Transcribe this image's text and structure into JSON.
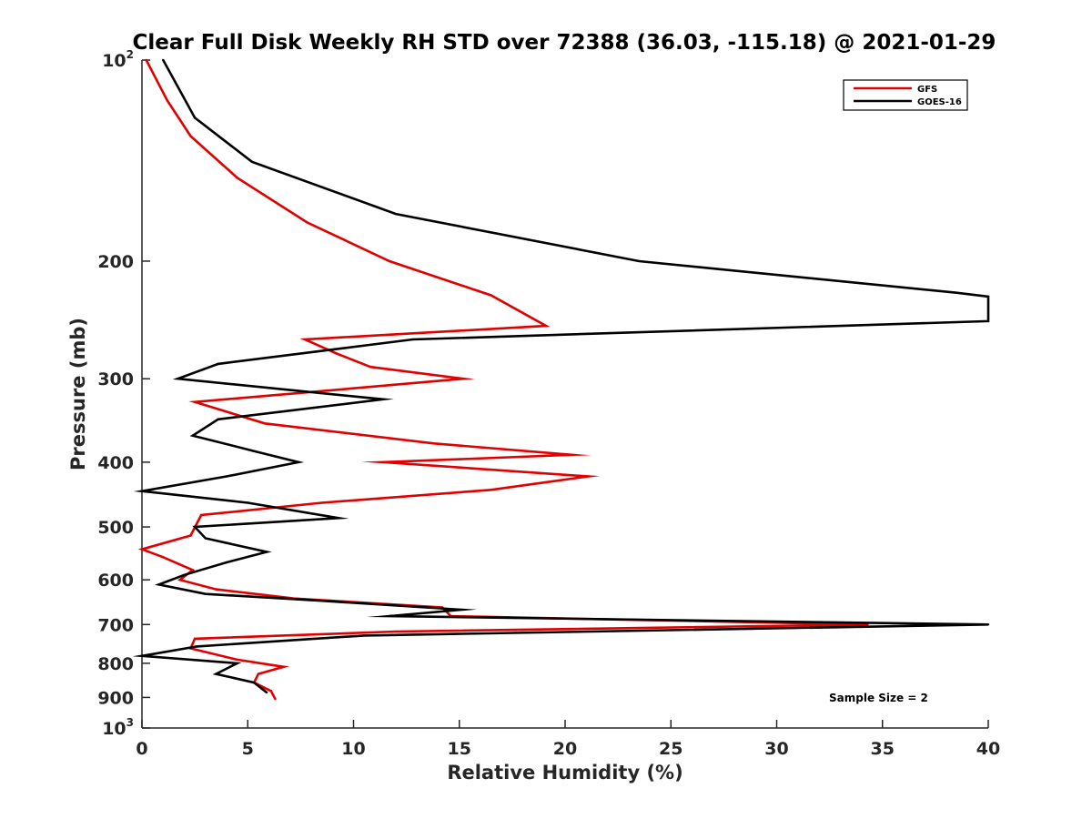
{
  "chart_data": {
    "type": "line",
    "title": "Clear Full Disk Weekly RH STD over 72388 (36.03, -115.18) @ 2021-01-29",
    "xlabel": "Relative Humidity (%)",
    "ylabel": "Pressure (mb)",
    "xlim": [
      0,
      40
    ],
    "ylim": [
      100,
      1000
    ],
    "y_scale": "log",
    "y_reversed": true,
    "grid": false,
    "legend_placement": "top-right",
    "x_ticks": [
      0,
      5,
      10,
      15,
      20,
      25,
      30,
      35,
      40
    ],
    "x_tick_labels": [
      "0",
      "5",
      "10",
      "15",
      "20",
      "25",
      "30",
      "35",
      "40"
    ],
    "y_ticks": [
      100,
      200,
      300,
      400,
      500,
      600,
      700,
      800,
      900,
      1000
    ],
    "y_tick_labels": [
      {
        "base": "10",
        "sup": "2"
      },
      {
        "base": "200",
        "sup": ""
      },
      {
        "base": "300",
        "sup": ""
      },
      {
        "base": "400",
        "sup": ""
      },
      {
        "base": "500",
        "sup": ""
      },
      {
        "base": "600",
        "sup": ""
      },
      {
        "base": "700",
        "sup": ""
      },
      {
        "base": "800",
        "sup": ""
      },
      {
        "base": "900",
        "sup": ""
      },
      {
        "base": "10",
        "sup": "3"
      }
    ],
    "annotation": "Sample Size = 2",
    "series": [
      {
        "name": "GFS",
        "color": "#e00000",
        "points": [
          [
            0.2,
            100
          ],
          [
            1.2,
            115
          ],
          [
            2.3,
            130
          ],
          [
            4.5,
            150
          ],
          [
            7.8,
            175
          ],
          [
            11.7,
            200
          ],
          [
            16.5,
            225
          ],
          [
            19.1,
            250
          ],
          [
            7.7,
            262
          ],
          [
            9.2,
            275
          ],
          [
            10.8,
            288
          ],
          [
            15.2,
            300
          ],
          [
            10,
            310
          ],
          [
            2.5,
            325
          ],
          [
            5.8,
            350
          ],
          [
            13.8,
            375
          ],
          [
            20.3,
            390
          ],
          [
            11.4,
            400
          ],
          [
            21.1,
            420
          ],
          [
            16.5,
            440
          ],
          [
            8.5,
            460
          ],
          [
            2.8,
            480
          ],
          [
            2.3,
            515
          ],
          [
            0,
            540
          ],
          [
            1,
            555
          ],
          [
            2.4,
            580
          ],
          [
            1.8,
            600
          ],
          [
            3.5,
            620
          ],
          [
            7.2,
            640
          ],
          [
            14.2,
            660
          ],
          [
            14.6,
            680
          ],
          [
            34.3,
            700
          ],
          [
            12,
            717
          ],
          [
            2.5,
            735
          ],
          [
            2.3,
            760
          ],
          [
            4.5,
            790
          ],
          [
            6.7,
            810
          ],
          [
            5.5,
            830
          ],
          [
            5.3,
            855
          ],
          [
            6.1,
            880
          ],
          [
            6.3,
            905
          ]
        ]
      },
      {
        "name": "GOES-16",
        "color": "#000000",
        "points": [
          [
            1,
            100
          ],
          [
            2.5,
            122
          ],
          [
            5.2,
            142
          ],
          [
            12,
            170
          ],
          [
            23.5,
            200
          ],
          [
            38.5,
            223
          ],
          [
            40,
            226
          ],
          [
            40,
            246
          ],
          [
            12.8,
            262
          ],
          [
            3.6,
            285
          ],
          [
            1.7,
            300
          ],
          [
            11.4,
            322
          ],
          [
            3.6,
            345
          ],
          [
            2.4,
            365
          ],
          [
            5.3,
            385
          ],
          [
            7.4,
            400
          ],
          [
            4,
            420
          ],
          [
            0,
            442
          ],
          [
            5,
            460
          ],
          [
            9.3,
            485
          ],
          [
            2.5,
            500
          ],
          [
            3,
            520
          ],
          [
            5.9,
            545
          ],
          [
            4,
            565
          ],
          [
            2,
            590
          ],
          [
            0.8,
            610
          ],
          [
            3,
            630
          ],
          [
            8.5,
            645
          ],
          [
            15.1,
            665
          ],
          [
            11.7,
            680
          ],
          [
            40,
            700
          ],
          [
            10.5,
            727
          ],
          [
            2.6,
            755
          ],
          [
            0,
            780
          ],
          [
            4.5,
            800
          ],
          [
            3.5,
            830
          ],
          [
            5.3,
            855
          ],
          [
            5.9,
            885
          ]
        ]
      }
    ]
  }
}
